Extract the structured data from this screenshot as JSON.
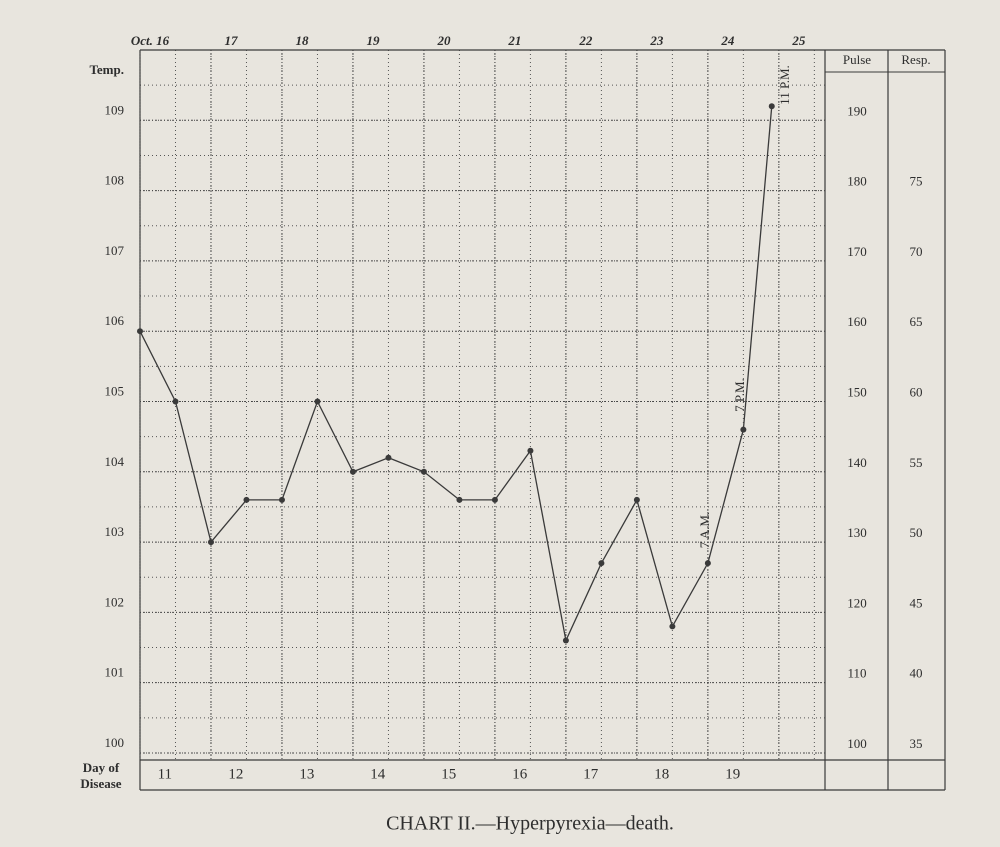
{
  "chart_data": {
    "type": "line",
    "title": "CHART II.—Hyperpyrexia—death.",
    "y_label": "Temp.",
    "day_label": [
      "Day of",
      "Disease"
    ],
    "x": [
      0,
      0.5,
      1,
      1.5,
      2,
      2.5,
      3,
      3.5,
      4,
      4.5,
      5,
      5.5,
      6,
      6.5,
      7,
      7.5,
      8,
      8.5,
      8.9
    ],
    "series": [
      {
        "name": "Temp.",
        "color": "#3a3a3a",
        "values": [
          106.0,
          105.0,
          103.0,
          103.6,
          103.6,
          105.0,
          104.0,
          104.2,
          104.0,
          103.6,
          103.6,
          104.3,
          101.6,
          102.7,
          103.6,
          101.8,
          102.7,
          104.6,
          109.2
        ]
      }
    ],
    "xlim": [
      0,
      9.65
    ],
    "xticks": [
      {
        "value": 0,
        "label": "Oct. 16"
      },
      {
        "value": 1,
        "label": "17"
      },
      {
        "value": 2,
        "label": "18"
      },
      {
        "value": 3,
        "label": "19"
      },
      {
        "value": 4,
        "label": "20"
      },
      {
        "value": 5,
        "label": "21"
      },
      {
        "value": 6,
        "label": "22"
      },
      {
        "value": 7,
        "label": "23"
      },
      {
        "value": 8,
        "label": "24"
      },
      {
        "value": 9,
        "label": "25"
      }
    ],
    "ylim": [
      99.9,
      110
    ],
    "yticks": [
      100,
      101,
      102,
      103,
      104,
      105,
      106,
      107,
      108,
      109
    ],
    "days_of_disease": [
      "11",
      "12",
      "13",
      "14",
      "15",
      "16",
      "17",
      "18",
      "19"
    ],
    "pulse_label": "Pulse",
    "pulse_lim": [
      99,
      200
    ],
    "pulse_ticks": [
      100,
      110,
      120,
      130,
      140,
      150,
      160,
      170,
      180,
      190
    ],
    "resp_label": "Resp.",
    "resp_lim": [
      34.5,
      85
    ],
    "resp_ticks": [
      35,
      40,
      45,
      50,
      55,
      60,
      65,
      70,
      75
    ],
    "annotations": [
      "7 A.M.",
      "7 P.M.",
      "11 P.M."
    ],
    "grid": true
  }
}
